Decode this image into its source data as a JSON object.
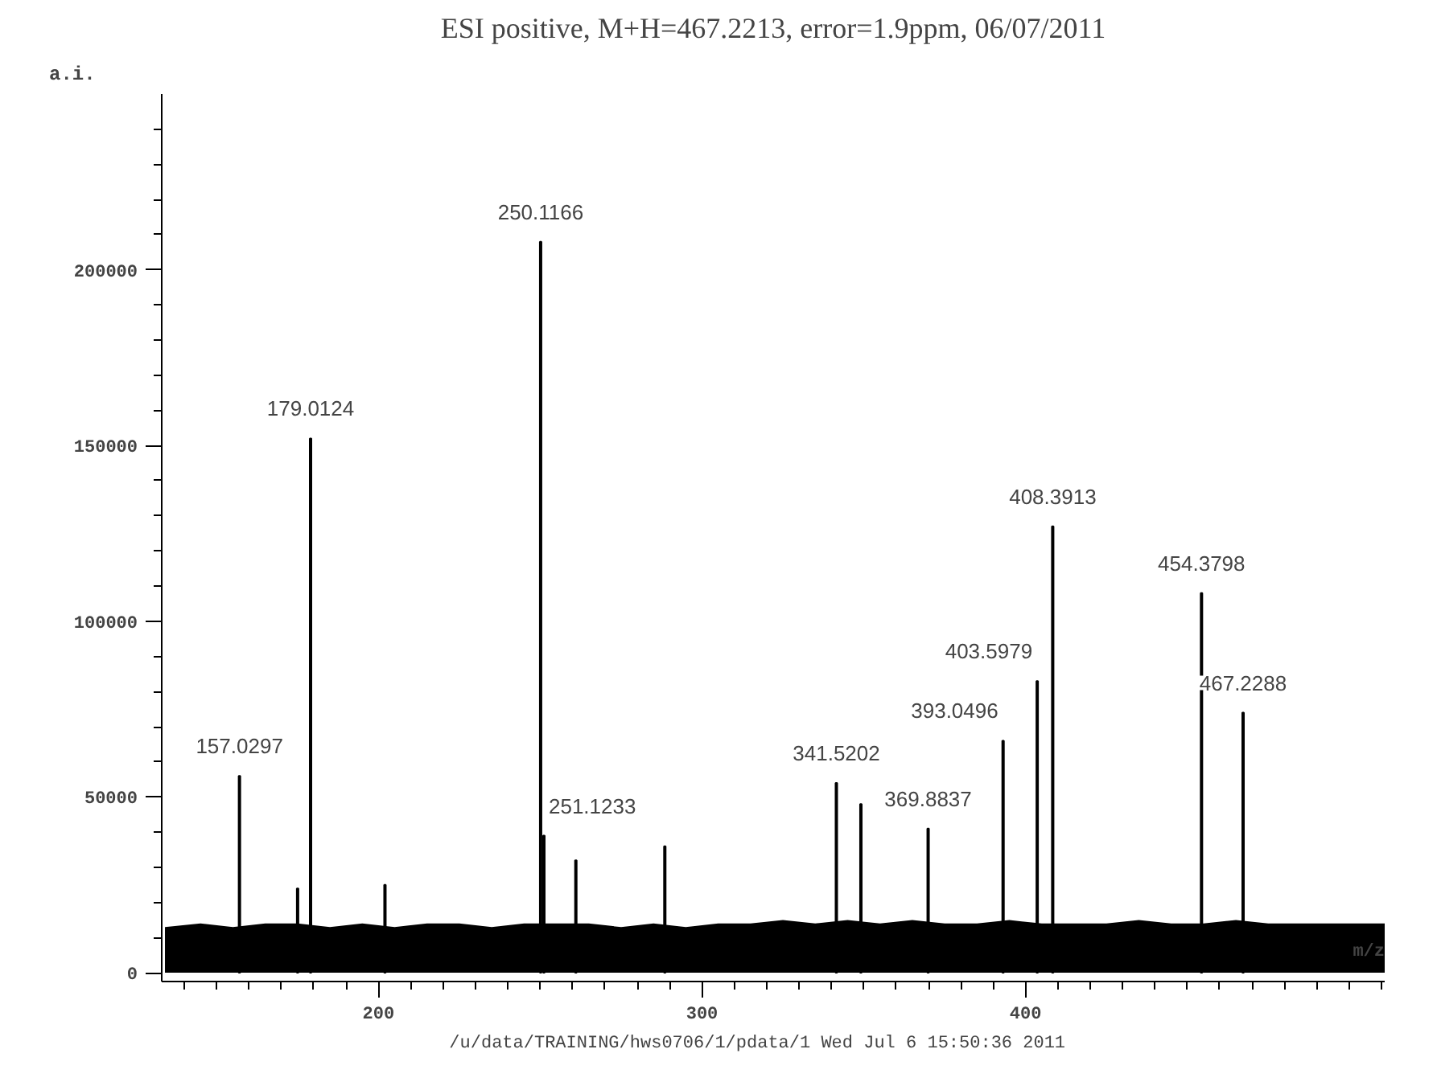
{
  "chart_data": {
    "type": "bar",
    "title": "ESI positive, M+H=467.2213, error=1.9ppm, 06/07/2011",
    "xlabel": "m/z",
    "ylabel": "a.i.",
    "x": [
      157.0297,
      175,
      179.0124,
      202,
      250.1166,
      251.1233,
      261,
      288.5,
      341.5202,
      349.1,
      369.8837,
      393.0496,
      403.5979,
      408.3913,
      454.3798,
      467.2288
    ],
    "series": [
      {
        "color": "#000000",
        "values": [
          56000,
          24000,
          152000,
          25000,
          208000,
          39000,
          32000,
          36000,
          54000,
          48000,
          41000,
          66000,
          83000,
          127000,
          108000,
          74000
        ]
      },
      {
        "type": "area",
        "color": "#000000",
        "x": [
          134,
          145,
          155,
          165,
          175,
          185,
          195,
          205,
          215,
          225,
          235,
          245,
          255,
          265,
          275,
          285,
          295,
          305,
          315,
          325,
          335,
          345,
          355,
          365,
          375,
          385,
          395,
          405,
          415,
          425,
          435,
          445,
          455,
          465,
          475,
          485,
          495,
          505,
          511
        ],
        "values": [
          13000,
          14000,
          13000,
          14000,
          14000,
          13000,
          14000,
          13000,
          14000,
          14000,
          13000,
          14000,
          14000,
          14000,
          13000,
          14000,
          13000,
          14000,
          14000,
          15000,
          14000,
          15000,
          14000,
          15000,
          14000,
          14000,
          15000,
          14000,
          14000,
          14000,
          15000,
          14000,
          14000,
          15000,
          14000,
          14000,
          14000,
          14000,
          14000
        ]
      }
    ],
    "xlim": [
      133,
      511
    ],
    "ylim": [
      -2500,
      250000
    ],
    "xticks": [
      {
        "value": 140,
        "label": null
      },
      {
        "value": 150,
        "label": null
      },
      {
        "value": 160,
        "label": null
      },
      {
        "value": 170,
        "label": null
      },
      {
        "value": 180,
        "label": null
      },
      {
        "value": 190,
        "label": null
      },
      200,
      {
        "value": 210,
        "label": null
      },
      {
        "value": 220,
        "label": null
      },
      {
        "value": 230,
        "label": null
      },
      {
        "value": 240,
        "label": null
      },
      {
        "value": 250,
        "label": null
      },
      {
        "value": 260,
        "label": null
      },
      {
        "value": 270,
        "label": null
      },
      {
        "value": 280,
        "label": null
      },
      {
        "value": 290,
        "label": null
      },
      300,
      {
        "value": 310,
        "label": null
      },
      {
        "value": 320,
        "label": null
      },
      {
        "value": 330,
        "label": null
      },
      {
        "value": 340,
        "label": null
      },
      {
        "value": 350,
        "label": null
      },
      {
        "value": 360,
        "label": null
      },
      {
        "value": 370,
        "label": null
      },
      {
        "value": 380,
        "label": null
      },
      {
        "value": 390,
        "label": null
      },
      400,
      {
        "value": 410,
        "label": null
      },
      {
        "value": 420,
        "label": null
      },
      {
        "value": 430,
        "label": null
      },
      {
        "value": 440,
        "label": null
      },
      {
        "value": 450,
        "label": null
      },
      {
        "value": 460,
        "label": null
      },
      {
        "value": 470,
        "label": null
      },
      {
        "value": 480,
        "label": null
      },
      {
        "value": 490,
        "label": null
      },
      {
        "value": 500,
        "label": null
      },
      {
        "value": 510,
        "label": null
      }
    ],
    "yticks": [
      0,
      {
        "value": 10000,
        "label": null
      },
      {
        "value": 20000,
        "label": null
      },
      {
        "value": 30000,
        "label": null
      },
      {
        "value": 40000,
        "label": null
      },
      50000,
      {
        "value": 60000,
        "label": null
      },
      {
        "value": 70000,
        "label": null
      },
      {
        "value": 80000,
        "label": null
      },
      {
        "value": 90000,
        "label": null
      },
      100000,
      {
        "value": 110000,
        "label": null
      },
      {
        "value": 120000,
        "label": null
      },
      {
        "value": 130000,
        "label": null
      },
      {
        "value": 140000,
        "label": null
      },
      150000,
      {
        "value": 160000,
        "label": null
      },
      {
        "value": 170000,
        "label": null
      },
      {
        "value": 180000,
        "label": null
      },
      {
        "value": 190000,
        "label": null
      },
      200000,
      {
        "value": 210000,
        "label": null
      },
      {
        "value": 220000,
        "label": null
      },
      {
        "value": 230000,
        "label": null
      },
      {
        "value": 240000,
        "label": null
      }
    ],
    "grid": false,
    "annotations": [
      {
        "text": "157.0297",
        "x": 157.0297,
        "y": 56000
      },
      {
        "text": "179.0124",
        "x": 179.0124,
        "y": 152000
      },
      {
        "text": "250.1166",
        "x": 250.1166,
        "y": 208000
      },
      {
        "text": "251.1233",
        "x": 251.1233,
        "y": 39000
      },
      {
        "text": "341.5202",
        "x": 341.5202,
        "y": 54000
      },
      {
        "text": "369.8837",
        "x": 369.8837,
        "y": 41000
      },
      {
        "text": "393.0496",
        "x": 393.0496,
        "y": 66000
      },
      {
        "text": "403.5979",
        "x": 403.5979,
        "y": 83000
      },
      {
        "text": "408.3913",
        "x": 408.3913,
        "y": 127000
      },
      {
        "text": "454.3798",
        "x": 454.3798,
        "y": 108000
      },
      {
        "text": "467.2288",
        "x": 467.2288,
        "y": 74000
      },
      "/u/data/TRAINING/hws0706/1/pdata/1   Wed Jul  6 15:50:36 2011"
    ]
  }
}
